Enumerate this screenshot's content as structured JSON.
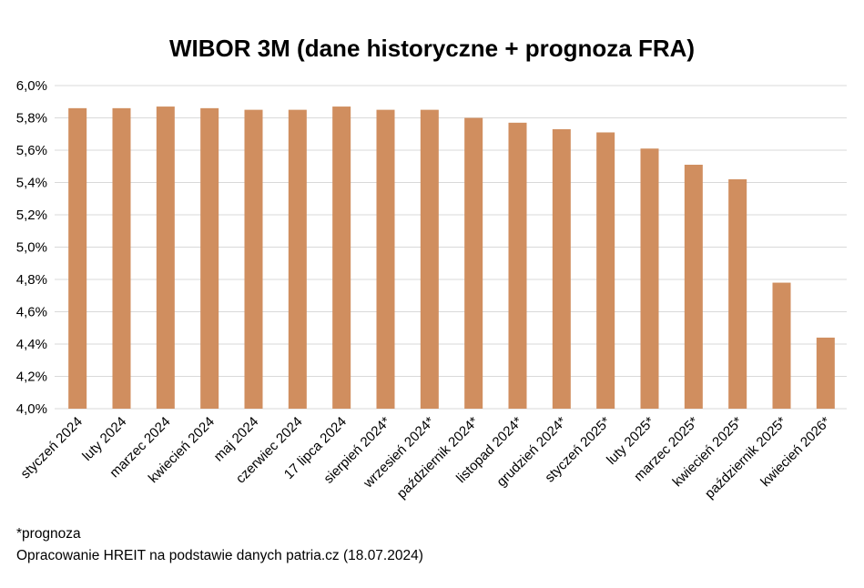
{
  "chart_data": {
    "type": "bar",
    "title": "WIBOR 3M (dane historyczne + prognoza FRA)",
    "categories": [
      "styczeń 2024",
      "luty 2024",
      "marzec 2024",
      "kwiecień 2024",
      "maj 2024",
      "czerwiec 2024",
      "17 lipca 2024",
      "sierpień 2024*",
      "wrzesień 2024*",
      "październik 2024*",
      "listopad 2024*",
      "grudzień 2024*",
      "styczeń 2025*",
      "luty 2025*",
      "marzec 2025*",
      "kwiecień 2025*",
      "październik 2025*",
      "kwiecień 2026*"
    ],
    "values": [
      5.86,
      5.86,
      5.87,
      5.86,
      5.85,
      5.85,
      5.87,
      5.85,
      5.85,
      5.8,
      5.77,
      5.73,
      5.71,
      5.61,
      5.51,
      5.42,
      4.78,
      4.44
    ],
    "ylim": [
      4.0,
      6.0
    ],
    "yticks": [
      "4,0%",
      "4,2%",
      "4,4%",
      "4,6%",
      "4,8%",
      "5,0%",
      "5,2%",
      "5,4%",
      "5,6%",
      "5,8%",
      "6,0%"
    ],
    "grid": true,
    "bar_color": "#D08E5F",
    "grid_color": "#D9D9D9",
    "xlabel": "",
    "ylabel": ""
  },
  "notes": {
    "forecast": "*prognoza",
    "source": "Opracowanie HREIT na podstawie danych patria.cz (18.07.2024)"
  }
}
